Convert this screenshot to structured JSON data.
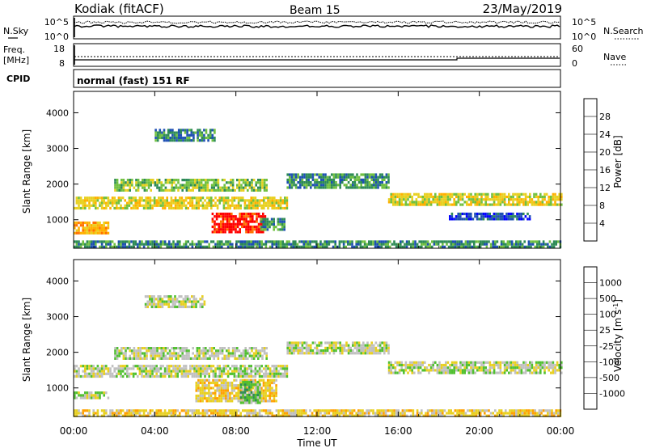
{
  "header": {
    "station": "Kodiak (fitACF)",
    "beam": "Beam 15",
    "date": "23/May/2019"
  },
  "noise_panel": {
    "left_label": "N.Sky",
    "right_label": "N.Search",
    "left_ticks": [
      "10^5",
      "10^0"
    ],
    "right_ticks": [
      "10^5",
      "10^0"
    ]
  },
  "freq_panel": {
    "left_label_1": "Freq.",
    "left_label_2": "[MHz]",
    "right_label": "Nave",
    "left_ticks": [
      "18",
      "8"
    ],
    "right_ticks": [
      "60",
      "0"
    ]
  },
  "cpid_panel": {
    "label": "CPID",
    "text": "normal (fast) 151 RF"
  },
  "chart_data": [
    {
      "type": "heatmap",
      "title": "",
      "xlabel": "Time UT",
      "ylabel": "Slant Range [km]",
      "x_ticks": [
        "00:00",
        "04:00",
        "08:00",
        "12:00",
        "16:00",
        "20:00",
        "00:00"
      ],
      "x_range_hours": [
        0,
        24
      ],
      "y_ticks": [
        1000,
        2000,
        3000,
        4000
      ],
      "ylim": [
        200,
        4600
      ],
      "colorbar": {
        "label": "Power [dB]",
        "ticks": [
          "28",
          "24",
          "20",
          "16",
          "12",
          "8",
          "4"
        ],
        "colors": [
          "#ff0000",
          "#ff7000",
          "#ffb000",
          "#e8d020",
          "#70c040",
          "#2e8b57",
          "#1e50b4",
          "#0000ff"
        ]
      },
      "regions": [
        {
          "t0": 0.0,
          "t1": 1.7,
          "r0": 650,
          "r1": 950,
          "level": 5
        },
        {
          "t0": 0.0,
          "t1": 10.5,
          "r0": 1300,
          "r1": 1650,
          "level": 4
        },
        {
          "t0": 2.0,
          "t1": 9.5,
          "r0": 1800,
          "r1": 2150,
          "level": 3
        },
        {
          "t0": 6.8,
          "t1": 9.4,
          "r0": 650,
          "r1": 1200,
          "level": 7
        },
        {
          "t0": 9.2,
          "t1": 10.4,
          "r0": 750,
          "r1": 1050,
          "level": 2
        },
        {
          "t0": 10.5,
          "t1": 15.5,
          "r0": 1900,
          "r1": 2300,
          "level": 2
        },
        {
          "t0": 15.5,
          "t1": 24.0,
          "r0": 1450,
          "r1": 1750,
          "level": 4
        },
        {
          "t0": 18.5,
          "t1": 22.5,
          "r0": 1000,
          "r1": 1200,
          "level": 1
        },
        {
          "t0": 4.0,
          "t1": 7.0,
          "r0": 3200,
          "r1": 3550,
          "level": 2
        },
        {
          "t0": 0.0,
          "t1": 24.0,
          "r0": 220,
          "r1": 420,
          "level": 2
        }
      ]
    },
    {
      "type": "heatmap",
      "title": "",
      "xlabel": "Time UT",
      "ylabel": "Slant Range [km]",
      "x_ticks": [
        "00:00",
        "04:00",
        "08:00",
        "12:00",
        "16:00",
        "20:00",
        "00:00"
      ],
      "x_range_hours": [
        0,
        24
      ],
      "y_ticks": [
        1000,
        2000,
        3000,
        4000
      ],
      "ylim": [
        200,
        4600
      ],
      "colorbar": {
        "label": "Velocity [m s^-1]",
        "ticks": [
          "1000",
          "500",
          "100",
          "25",
          "-25",
          "-100",
          "-500",
          "-1000"
        ],
        "colors": [
          "#1e3cc8",
          "#3a6ea8",
          "#2e8b57",
          "#50c030",
          "#c0c0c0",
          "#e8d020",
          "#ffa000",
          "#ff5000",
          "#ff0000"
        ]
      },
      "regions": [
        {
          "t0": 0.0,
          "t1": 1.7,
          "r0": 700,
          "r1": 900,
          "level": 4
        },
        {
          "t0": 0.0,
          "t1": 10.5,
          "r0": 1350,
          "r1": 1650,
          "level": 4
        },
        {
          "t0": 2.0,
          "t1": 9.5,
          "r0": 1850,
          "r1": 2150,
          "level": 4
        },
        {
          "t0": 6.0,
          "t1": 10.0,
          "r0": 600,
          "r1": 1250,
          "level": 5
        },
        {
          "t0": 8.2,
          "t1": 9.2,
          "r0": 600,
          "r1": 1200,
          "level": 3
        },
        {
          "t0": 10.5,
          "t1": 15.5,
          "r0": 1950,
          "r1": 2300,
          "level": 4
        },
        {
          "t0": 15.5,
          "t1": 24.0,
          "r0": 1450,
          "r1": 1750,
          "level": 4
        },
        {
          "t0": 3.5,
          "t1": 6.5,
          "r0": 3300,
          "r1": 3600,
          "level": 4
        },
        {
          "t0": 0.0,
          "t1": 24.0,
          "r0": 220,
          "r1": 400,
          "level": 5
        }
      ]
    }
  ]
}
